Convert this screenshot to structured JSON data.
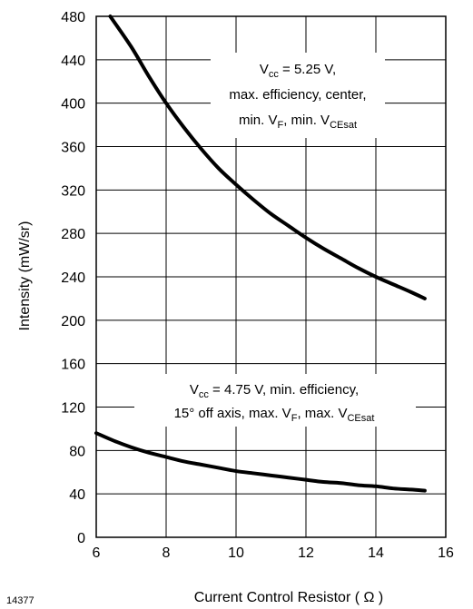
{
  "figure_id": "14377",
  "chart_data": {
    "type": "line",
    "title": "",
    "xlabel": "Current Control Resistor ( Ω )",
    "ylabel": "Intensity (mW/sr)",
    "xlim": [
      6,
      16
    ],
    "ylim": [
      0,
      480
    ],
    "x_ticks": [
      "6",
      "8",
      "10",
      "12",
      "14",
      "16"
    ],
    "y_ticks": [
      "0",
      "40",
      "80",
      "120",
      "160",
      "200",
      "240",
      "280",
      "320",
      "360",
      "400",
      "440",
      "480"
    ],
    "grid": true,
    "series": [
      {
        "x": [
          6.4,
          7.0,
          7.5,
          8.0,
          8.5,
          9.0,
          9.5,
          10.0,
          10.5,
          11.0,
          11.5,
          12.0,
          12.5,
          13.0,
          13.5,
          14.0,
          14.5,
          15.0,
          15.4
        ],
        "values": [
          480,
          452,
          425,
          400,
          378,
          358,
          340,
          325,
          311,
          298,
          287,
          276,
          266,
          257,
          248,
          240,
          233,
          226,
          220
        ]
      },
      {
        "x": [
          6.0,
          6.5,
          7.0,
          7.5,
          8.0,
          8.5,
          9.0,
          9.5,
          10.0,
          10.5,
          11.0,
          11.5,
          12.0,
          12.5,
          13.0,
          13.5,
          14.0,
          14.5,
          15.0,
          15.4
        ],
        "values": [
          96,
          89,
          83,
          78,
          74,
          70,
          67,
          64,
          61,
          59,
          57,
          55,
          53,
          51,
          50,
          48,
          47,
          45,
          44,
          43
        ]
      }
    ],
    "annotations": [
      {
        "lines": [
          {
            "main": "V",
            "sub": "cc",
            "rest": " = 5.25 V,"
          },
          {
            "main": "max. efficiency, center,",
            "sub": "",
            "rest": ""
          },
          {
            "main": "min. V",
            "sub": "F",
            "rest": ", min. V",
            "sub2": "CEsat"
          }
        ]
      },
      {
        "lines": [
          {
            "main": "V",
            "sub": "cc",
            "rest": " = 4.75 V, min. efficiency,"
          },
          {
            "main": "15° off axis, max. V",
            "sub": "F",
            "rest": ", max. V",
            "sub2": "CEsat"
          }
        ]
      }
    ]
  }
}
